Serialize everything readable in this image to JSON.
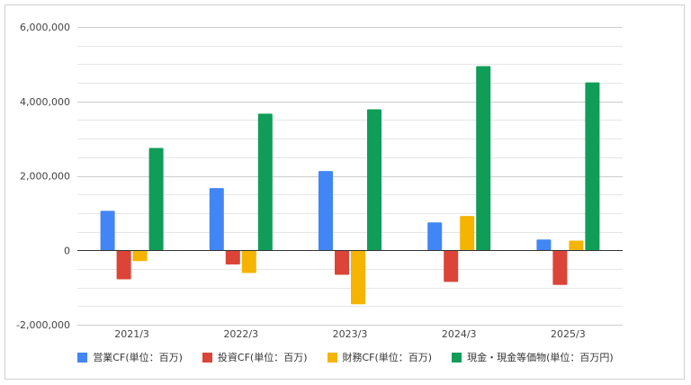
{
  "chart_data": {
    "type": "bar",
    "categories": [
      "2021/3",
      "2022/3",
      "2023/3",
      "2024/3",
      "2025/3"
    ],
    "series": [
      {
        "name": "営業CF(単位：百万)",
        "color": "#4285F4",
        "values": [
          1060000,
          1670000,
          2130000,
          750000,
          290000
        ]
      },
      {
        "name": "投資CF(単位：百万)",
        "color": "#DB4437",
        "values": [
          -780000,
          -380000,
          -660000,
          -850000,
          -930000
        ]
      },
      {
        "name": "財務CF(単位：百万)",
        "color": "#F4B400",
        "values": [
          -290000,
          -610000,
          -1450000,
          920000,
          260000
        ]
      },
      {
        "name": "現金・現金等価物(単位：百万円)",
        "color": "#0F9D58",
        "values": [
          2750000,
          3670000,
          3790000,
          4950000,
          4510000
        ]
      }
    ],
    "yticks": [
      "6,000,000",
      "4,000,000",
      "2,000,000",
      "0",
      "-2,000,000"
    ],
    "ylim": [
      -2000000,
      6000000
    ],
    "grid": true,
    "legend_position": "bottom"
  }
}
